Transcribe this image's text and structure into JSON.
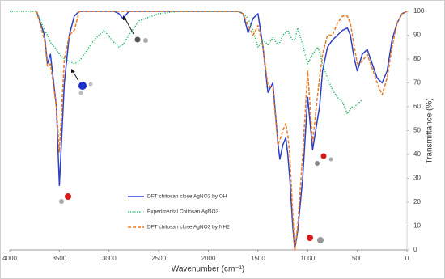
{
  "chart_data": {
    "type": "line",
    "x_label": "Wavenumber (cm⁻¹)",
    "y_label": "Transmittance (%)",
    "x": [
      4000,
      3750,
      3730,
      3650,
      3620,
      3590,
      3530,
      3500,
      3450,
      3400,
      3350,
      3300,
      3250,
      3150,
      3050,
      2950,
      2900,
      2860,
      2800,
      2700,
      2500,
      2300,
      1700,
      1650,
      1600,
      1550,
      1500,
      1450,
      1400,
      1350,
      1300,
      1280,
      1250,
      1220,
      1200,
      1180,
      1150,
      1130,
      1100,
      1050,
      1000,
      950,
      900,
      880,
      850,
      800,
      750,
      700,
      650,
      600,
      570,
      550,
      530,
      500,
      450,
      400,
      350,
      300,
      250,
      200,
      150,
      100,
      50,
      0
    ],
    "series": [
      {
        "name": "DFT chitosan close AgNO3 by OH",
        "color": "#2e3fc7",
        "style": "solid",
        "values": [
          null,
          null,
          100,
          90,
          78,
          82,
          60,
          27,
          70,
          90,
          98,
          100,
          100,
          100,
          100,
          100,
          99,
          97,
          100,
          100,
          100,
          100,
          100,
          99,
          91,
          97,
          99,
          85,
          66,
          70,
          45,
          38,
          44,
          47,
          40,
          30,
          10,
          0,
          8,
          30,
          64,
          42,
          55,
          60,
          75,
          85,
          88,
          90,
          92,
          93,
          90,
          85,
          80,
          75,
          82,
          84,
          78,
          72,
          70,
          75,
          88,
          95,
          99,
          100
        ]
      },
      {
        "name": "Experimental Chitosan AgNO3",
        "color": "#22b866",
        "style": "dotted",
        "values": [
          100,
          100,
          100,
          92,
          90,
          87,
          84,
          82,
          80,
          79,
          78,
          79,
          82,
          88,
          92,
          87,
          85,
          86,
          90,
          96,
          99,
          100,
          100,
          99,
          97,
          92,
          85,
          88,
          86,
          89,
          86,
          87,
          90,
          91,
          92,
          90,
          88,
          88,
          93,
          86,
          78,
          82,
          85,
          83,
          78,
          72,
          67,
          64,
          62,
          57,
          59,
          60,
          60,
          61,
          63,
          null,
          null,
          null,
          null,
          null,
          null,
          null,
          null,
          null
        ]
      },
      {
        "name": "DFT chitosan close AgNO3 by NH2",
        "color": "#e87a22",
        "style": "dashed",
        "values": [
          null,
          null,
          100,
          88,
          77,
          78,
          60,
          41,
          80,
          90,
          92,
          100,
          100,
          100,
          100,
          100,
          100,
          100,
          100,
          100,
          100,
          100,
          100,
          99,
          94,
          90,
          94,
          85,
          69,
          68,
          44,
          46,
          50,
          53,
          48,
          40,
          15,
          0,
          10,
          40,
          75,
          45,
          65,
          72,
          82,
          90,
          90,
          95,
          98,
          98,
          95,
          90,
          85,
          78,
          79,
          82,
          76,
          70,
          65,
          72,
          85,
          95,
          99,
          100
        ]
      }
    ],
    "xlim": [
      4000,
      0
    ],
    "xticks": [
      4000,
      3500,
      3000,
      2500,
      2000,
      1500,
      1000,
      500,
      0
    ],
    "ylim": [
      0,
      100
    ],
    "yticks": [
      0,
      10,
      20,
      30,
      40,
      50,
      60,
      70,
      80,
      90,
      100
    ],
    "y_axis_side": "right",
    "legend": "lower-center"
  }
}
